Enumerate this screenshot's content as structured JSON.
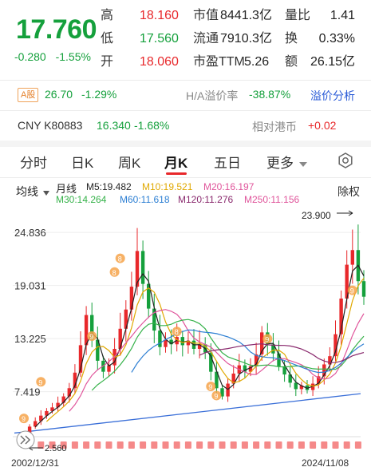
{
  "quote": {
    "price": "17.760",
    "change": "-0.280",
    "change_pct": "-1.55%",
    "rows": [
      {
        "l1": "高",
        "v1": "18.160",
        "l2": "市值",
        "v2": "8441.3亿",
        "l3": "量比",
        "v3": "1.41"
      },
      {
        "l1": "低",
        "v1": "17.560",
        "l2": "流通",
        "v2": "7910.3亿",
        "l3": "换",
        "v3": "0.33%"
      },
      {
        "l1": "开",
        "v1": "18.060",
        "l2": "市盈TTM",
        "v2": "5.26",
        "l3": "额",
        "v3": "26.15亿"
      }
    ]
  },
  "a_share": {
    "badge": "A股",
    "price": "26.70",
    "pct": "-1.29%",
    "premium_label": "H/A溢价率",
    "premium_value": "-38.87%",
    "premium_link": "溢价分析"
  },
  "cny": {
    "code": "CNY K80883",
    "price": "16.340",
    "pct": "-1.68%",
    "rel_label": "相对港币",
    "rel_value": "+0.02"
  },
  "tabs": [
    {
      "label": "分时",
      "active": false
    },
    {
      "label": "日K",
      "active": false
    },
    {
      "label": "周K",
      "active": false
    },
    {
      "label": "月K",
      "active": true
    },
    {
      "label": "五日",
      "active": false
    },
    {
      "label": "更多",
      "active": false
    }
  ],
  "ma_bar": {
    "selector": "均线",
    "period": "月线",
    "fq": "除权",
    "items": [
      {
        "text": "M5:19.482",
        "color": "#222222"
      },
      {
        "text": "M10:19.521",
        "color": "#e0a800"
      },
      {
        "text": "M20:16.197",
        "color": "#e0559b"
      },
      {
        "text": "M30:14.264",
        "color": "#36b24a"
      },
      {
        "text": "M60:11.618",
        "color": "#2d7fd3"
      },
      {
        "text": "M120:11.276",
        "color": "#8a2a6e"
      },
      {
        "text": "M250:11.156",
        "color": "#e0559b"
      }
    ]
  },
  "chart_data": {
    "type": "candlestick",
    "y_axis_labels": [
      "24.836",
      "19.031",
      "13.225",
      "7.419"
    ],
    "ylim": [
      2.5,
      26.5
    ],
    "x_start": "2002/12/31",
    "x_end": "2024/11/08",
    "max_label": "23.900",
    "min_label": "2.560",
    "colors": {
      "up": "#e8282b",
      "down": "#15a03c",
      "trend": "#3a6fd8"
    },
    "closes": [
      2.9,
      3.6,
      4.2,
      4.8,
      5.3,
      5.7,
      6.2,
      6.9,
      7.8,
      9.5,
      12.5,
      15.8,
      13.1,
      10.8,
      9.6,
      10.3,
      12.1,
      14.3,
      16.4,
      18.9,
      22.8,
      19.2,
      16.5,
      14.1,
      12.3,
      13.1,
      12.6,
      13.4,
      12.5,
      13.0,
      12.1,
      12.6,
      11.7,
      9.6,
      7.8,
      6.9,
      8.3,
      9.4,
      10.3,
      9.6,
      10.2,
      11.5,
      13.9,
      12.6,
      11.6,
      10.2,
      9.3,
      8.4,
      7.7,
      8.1,
      7.6,
      8.3,
      9.1,
      10.4,
      11.3,
      13.7,
      17.6,
      21.3,
      22.9,
      19.5,
      17.8
    ]
  }
}
